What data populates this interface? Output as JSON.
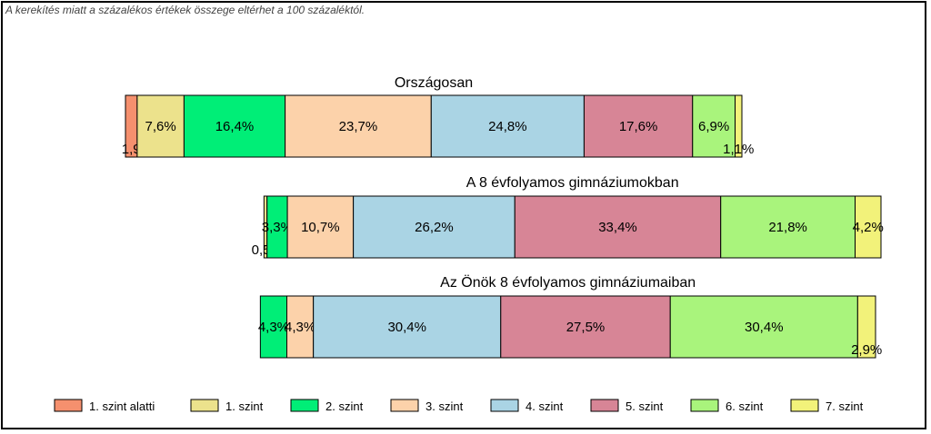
{
  "note": "A kerekítés miatt a  százalékos értékek összege eltérhet a 100 százaléktól.",
  "chart_data": {
    "type": "bar",
    "stacked": true,
    "orientation": "horizontal",
    "legend_position": "bottom",
    "categories": [
      "1. szint alatti",
      "1. szint",
      "2. szint",
      "3. szint",
      "4. szint",
      "5. szint",
      "6. szint",
      "7. szint"
    ],
    "colors": [
      "#f5906e",
      "#ece28c",
      "#00ee77",
      "#fcd2aa",
      "#aad4e4",
      "#d78596",
      "#a9f47c",
      "#f2f27a"
    ],
    "bars": [
      {
        "title": "Országosan",
        "values": [
          1.9,
          7.6,
          16.4,
          23.7,
          24.8,
          17.6,
          6.9,
          1.1
        ],
        "labels": [
          "1,9%",
          "7,6%",
          "16,4%",
          "23,7%",
          "24,8%",
          "17,6%",
          "6,9%",
          "1,1%"
        ]
      },
      {
        "title": "A 8 évfolyamos gimnáziumokban",
        "values": [
          0.5,
          3.3,
          10.7,
          26.2,
          33.4,
          21.8,
          4.2
        ],
        "labels": [
          "0,5%",
          "3,3%",
          "10,7%",
          "26,2%",
          "33,4%",
          "21,8%",
          "4,2%"
        ],
        "category_index": [
          1,
          2,
          3,
          4,
          5,
          6,
          7
        ]
      },
      {
        "title": "Az Önök 8 évfolyamos gimnáziumaiban",
        "values": [
          4.3,
          4.3,
          30.4,
          27.5,
          30.4,
          2.9
        ],
        "labels": [
          "4,3%",
          "4,3%",
          "30,4%",
          "27,5%",
          "30,4%",
          "2,9%"
        ],
        "category_index": [
          2,
          3,
          4,
          5,
          6,
          7
        ]
      }
    ]
  }
}
